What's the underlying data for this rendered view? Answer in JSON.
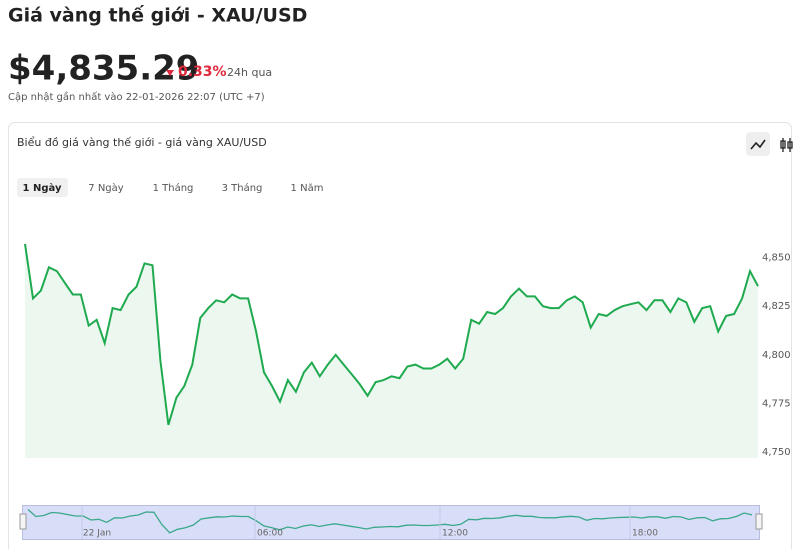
{
  "header": {
    "title": "Giá vàng thế giới - XAU/USD",
    "price": "$4,835.29",
    "change": "0.33%",
    "period": "24h qua",
    "updated": "Cập nhật gần nhất vào 22-01-2026 22:07 (UTC +7)"
  },
  "card": {
    "title": "Biểu đồ giá vàng thế giới - giá vàng XAU/USD",
    "tabs": [
      "1 Ngày",
      "7 Ngày",
      "1 Tháng",
      "3 Tháng",
      "1 Năm"
    ]
  },
  "chart_data": {
    "type": "line",
    "color": "#1faa4f",
    "grid": false,
    "values": [
      4857,
      4829,
      4833,
      4845,
      4843,
      4837,
      4831,
      4831,
      4815,
      4818,
      4806,
      4824,
      4823,
      4831,
      4835,
      4847,
      4846,
      4797,
      4764,
      4778,
      4784,
      4795,
      4819,
      4824,
      4828,
      4827,
      4831,
      4829,
      4829,
      4812,
      4791,
      4784,
      4776,
      4787,
      4781,
      4791,
      4796,
      4789,
      4795,
      4800,
      4795,
      4790,
      4785,
      4779,
      4786,
      4787,
      4789,
      4788,
      4794,
      4795,
      4793,
      4793,
      4795,
      4798,
      4793,
      4798,
      4818,
      4816,
      4822,
      4821,
      4824,
      4830,
      4834,
      4830,
      4830,
      4825,
      4824,
      4824,
      4828,
      4830,
      4827,
      4814,
      4821,
      4820,
      4823,
      4825,
      4826,
      4827,
      4823,
      4828,
      4828,
      4822,
      4829,
      4827,
      4817,
      4824,
      4825,
      4812,
      4820,
      4821,
      4829,
      4843,
      4835.29
    ],
    "ylim": [
      4747,
      4859
    ],
    "yticks": [
      {
        "value": 4750,
        "label": "4,750"
      },
      {
        "value": 4775,
        "label": "4,775"
      },
      {
        "value": 4800,
        "label": "4,800"
      },
      {
        "value": 4825,
        "label": "4,825"
      },
      {
        "value": 4850,
        "label": "4,850"
      }
    ],
    "navigator_labels": [
      "22 Jan",
      "06:00",
      "12:00",
      "18:00"
    ]
  }
}
